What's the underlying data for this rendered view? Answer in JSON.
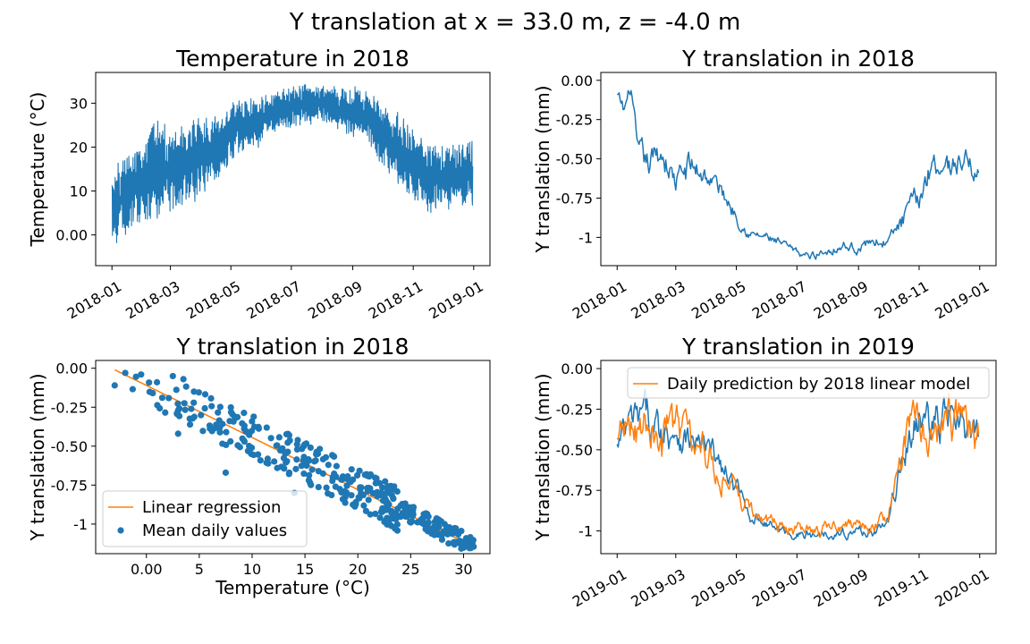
{
  "suptitle": "Y translation at x = 33.0 m, z = -4.0 m",
  "colors": {
    "blue": "#1f77b4",
    "orange": "#ff7f0e"
  },
  "chart_data": [
    {
      "type": "line",
      "title": "Temperature in 2018",
      "xlabel": "",
      "ylabel": "Temperature (°C)",
      "xticks": [
        "2018-01",
        "2018-03",
        "2018-05",
        "2018-07",
        "2018-09",
        "2018-11",
        "2019-01"
      ],
      "yticks": [
        0,
        10,
        20,
        30
      ],
      "ylim": [
        -7,
        37
      ],
      "series": [
        {
          "name": "",
          "color": "#1f77b4",
          "style": "hourly-noisy",
          "x": [
            "2018-01-01",
            "2018-01-15",
            "2018-02-01",
            "2018-02-15",
            "2018-03-01",
            "2018-03-15",
            "2018-04-01",
            "2018-04-15",
            "2018-05-01",
            "2018-05-15",
            "2018-06-01",
            "2018-06-15",
            "2018-07-01",
            "2018-07-15",
            "2018-08-01",
            "2018-08-15",
            "2018-09-01",
            "2018-09-15",
            "2018-10-01",
            "2018-10-15",
            "2018-11-01",
            "2018-11-15",
            "2018-12-01",
            "2018-12-15",
            "2018-12-31"
          ],
          "y": [
            5,
            10,
            12,
            15,
            14,
            16,
            18,
            20,
            23,
            25,
            26,
            28,
            29,
            30,
            30,
            29,
            28,
            27,
            23,
            20,
            16,
            13,
            13,
            13,
            14
          ],
          "spread": [
            7,
            9,
            9,
            9,
            9,
            8,
            8,
            7,
            6,
            5,
            5,
            4,
            4,
            4,
            4,
            4,
            5,
            5,
            6,
            7,
            7,
            7,
            6,
            6,
            7
          ]
        }
      ]
    },
    {
      "type": "line",
      "title": "Y translation in 2018",
      "xlabel": "",
      "ylabel": "Y translation (mm)",
      "xticks": [
        "2018-01",
        "2018-03",
        "2018-05",
        "2018-07",
        "2018-09",
        "2018-11",
        "2019-01"
      ],
      "yticks": [
        0.0,
        -0.25,
        -0.5,
        -0.75,
        -1.0
      ],
      "ylim": [
        -1.18,
        0.05
      ],
      "series": [
        {
          "name": "",
          "color": "#1f77b4",
          "style": "daily",
          "x": [
            "2018-01-01",
            "2018-01-08",
            "2018-01-15",
            "2018-01-22",
            "2018-02-01",
            "2018-02-15",
            "2018-03-01",
            "2018-03-15",
            "2018-04-01",
            "2018-04-15",
            "2018-05-01",
            "2018-05-15",
            "2018-06-01",
            "2018-06-15",
            "2018-07-01",
            "2018-07-15",
            "2018-08-01",
            "2018-08-15",
            "2018-09-01",
            "2018-09-15",
            "2018-10-01",
            "2018-10-15",
            "2018-11-01",
            "2018-11-15",
            "2018-12-01",
            "2018-12-15",
            "2018-12-31"
          ],
          "y": [
            -0.1,
            -0.2,
            -0.05,
            -0.5,
            -0.55,
            -0.45,
            -0.65,
            -0.55,
            -0.6,
            -0.7,
            -0.85,
            -0.98,
            -1.0,
            -1.05,
            -1.1,
            -1.12,
            -1.08,
            -1.05,
            -1.07,
            -1.02,
            -1.03,
            -0.9,
            -0.75,
            -0.5,
            -0.55,
            -0.5,
            -0.6
          ],
          "spread": [
            0.05,
            0.08,
            0.05,
            0.12,
            0.12,
            0.12,
            0.1,
            0.12,
            0.1,
            0.08,
            0.06,
            0.04,
            0.04,
            0.04,
            0.03,
            0.03,
            0.04,
            0.04,
            0.04,
            0.04,
            0.05,
            0.08,
            0.1,
            0.12,
            0.1,
            0.1,
            0.08
          ]
        }
      ]
    },
    {
      "type": "scatter",
      "title": "Y translation in 2018",
      "xlabel": "Temperature (°C)",
      "ylabel": "Y translation (mm)",
      "xticks": [
        0,
        5,
        10,
        15,
        20,
        25,
        30
      ],
      "yticks": [
        0.0,
        -0.25,
        -0.5,
        -0.75,
        -1.0
      ],
      "xlim": [
        -4.8,
        32.5
      ],
      "ylim": [
        -1.19,
        0.05
      ],
      "legend": {
        "position": "lower-left",
        "entries": [
          "Linear regression",
          "Mean daily values"
        ]
      },
      "series": [
        {
          "name": "Linear regression",
          "kind": "line",
          "color": "#ff7f0e",
          "x": [
            -3.0,
            30.8
          ],
          "y": [
            -0.01,
            -1.14
          ]
        },
        {
          "name": "Mean daily values",
          "kind": "scatter",
          "color": "#1f77b4",
          "trend": {
            "slope": -0.0334,
            "intercept": -0.11
          },
          "x_range": [
            -3,
            31
          ],
          "count": 365,
          "sample_points": [
            [
              -3.0,
              -0.11
            ],
            [
              -2.0,
              -0.03
            ],
            [
              -0.5,
              -0.04
            ],
            [
              1.0,
              -0.09
            ],
            [
              2.5,
              -0.05
            ],
            [
              3.5,
              -0.07
            ],
            [
              4.5,
              -0.15
            ],
            [
              3.0,
              -0.42
            ],
            [
              7.5,
              -0.67
            ],
            [
              14.0,
              -0.8
            ],
            [
              23.0,
              -1.0
            ],
            [
              30.5,
              -1.12
            ]
          ]
        }
      ]
    },
    {
      "type": "line",
      "title": "Y translation in 2019",
      "xlabel": "",
      "ylabel": "Y translation (mm)",
      "xticks": [
        "2019-01",
        "2019-03",
        "2019-05",
        "2019-07",
        "2019-09",
        "2019-11",
        "2020-01"
      ],
      "yticks": [
        0.0,
        -0.25,
        -0.5,
        -0.75,
        -1.0
      ],
      "ylim": [
        -1.14,
        0.05
      ],
      "legend": {
        "position": "upper-right",
        "entries": [
          "Daily prediction by 2018 linear model"
        ]
      },
      "series": [
        {
          "name": "",
          "color": "#1f77b4",
          "style": "daily",
          "x": [
            "2019-01-01",
            "2019-01-15",
            "2019-02-01",
            "2019-02-15",
            "2019-03-01",
            "2019-03-15",
            "2019-04-01",
            "2019-04-15",
            "2019-05-01",
            "2019-05-15",
            "2019-06-01",
            "2019-06-15",
            "2019-07-01",
            "2019-07-15",
            "2019-08-01",
            "2019-08-15",
            "2019-09-01",
            "2019-09-15",
            "2019-10-01",
            "2019-10-15",
            "2019-11-01",
            "2019-11-15",
            "2019-12-01",
            "2019-12-15",
            "2019-12-31"
          ],
          "y": [
            -0.5,
            -0.35,
            -0.3,
            -0.4,
            -0.35,
            -0.45,
            -0.5,
            -0.6,
            -0.75,
            -0.9,
            -0.95,
            -1.0,
            -1.02,
            -1.03,
            -1.0,
            -1.02,
            -1.0,
            -1.0,
            -0.95,
            -0.55,
            -0.3,
            -0.35,
            -0.3,
            -0.4,
            -0.45
          ],
          "spread": [
            0.12,
            0.15,
            0.15,
            0.15,
            0.15,
            0.12,
            0.12,
            0.1,
            0.08,
            0.05,
            0.04,
            0.04,
            0.04,
            0.04,
            0.04,
            0.04,
            0.04,
            0.04,
            0.05,
            0.12,
            0.15,
            0.15,
            0.15,
            0.15,
            0.12
          ]
        },
        {
          "name": "Daily prediction by 2018 linear model",
          "color": "#ff7f0e",
          "style": "daily-prediction",
          "x": [
            "2019-01-01",
            "2019-01-15",
            "2019-02-01",
            "2019-02-15",
            "2019-03-01",
            "2019-03-15",
            "2019-04-01",
            "2019-04-15",
            "2019-05-01",
            "2019-05-15",
            "2019-06-01",
            "2019-06-15",
            "2019-07-01",
            "2019-07-15",
            "2019-08-01",
            "2019-08-15",
            "2019-09-01",
            "2019-09-15",
            "2019-10-01",
            "2019-10-15",
            "2019-11-01",
            "2019-11-15",
            "2019-12-01",
            "2019-12-15",
            "2019-12-31"
          ],
          "y": [
            -0.48,
            -0.33,
            -0.32,
            -0.42,
            -0.33,
            -0.47,
            -0.5,
            -0.62,
            -0.73,
            -0.88,
            -0.93,
            -0.97,
            -1.0,
            -1.0,
            -0.98,
            -0.99,
            -0.97,
            -0.97,
            -0.93,
            -0.5,
            -0.28,
            -0.33,
            -0.32,
            -0.42,
            -0.4
          ],
          "spread": [
            0.15,
            0.18,
            0.18,
            0.18,
            0.18,
            0.15,
            0.14,
            0.12,
            0.1,
            0.06,
            0.05,
            0.05,
            0.05,
            0.05,
            0.05,
            0.05,
            0.05,
            0.05,
            0.06,
            0.15,
            0.18,
            0.18,
            0.18,
            0.18,
            0.15
          ]
        }
      ]
    }
  ]
}
